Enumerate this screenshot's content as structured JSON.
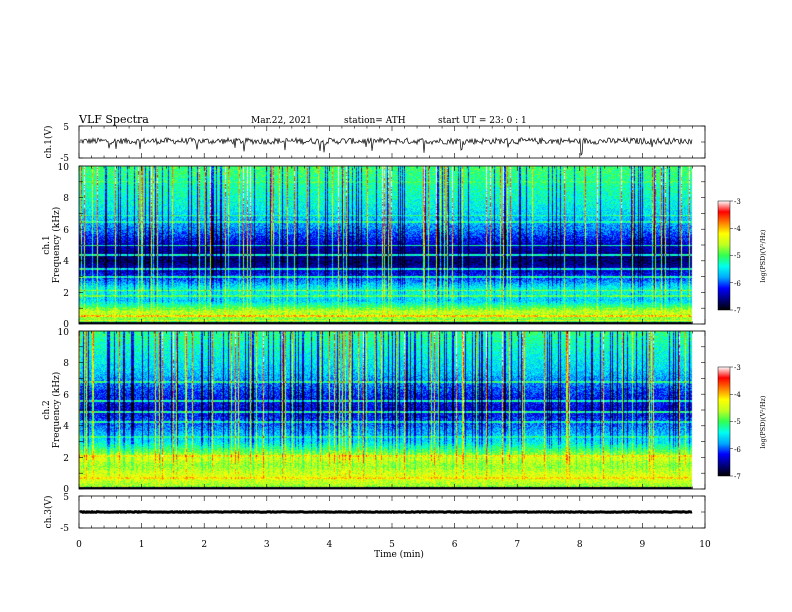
{
  "header": {
    "title": "VLF  Spectra",
    "date": "Mar.22, 2021",
    "station": "station= ATH",
    "start_ut": "start  UT  =    23: 0   : 1"
  },
  "chart_data": {
    "type": "heatmap",
    "time_axis": {
      "label": "Time  (min)",
      "ticks": [
        "0",
        "1",
        "2",
        "3",
        "4",
        "5",
        "6",
        "7",
        "8",
        "9",
        "10"
      ],
      "range": [
        0,
        10
      ],
      "data_end_min": 9.8
    },
    "colorscale": [
      "#000000",
      "#000080",
      "#0000ff",
      "#00aaff",
      "#00ffee",
      "#30ff50",
      "#c0ff20",
      "#ffff00",
      "#ff7f00",
      "#ff0000",
      "#ffffff"
    ],
    "panels": [
      {
        "id": "ch1-waveform",
        "type": "line",
        "ylabel": "ch.1(V)",
        "ylim": [
          -5,
          5
        ],
        "yticks": [
          "5",
          "-5"
        ],
        "baseline_v": 0.3,
        "noise_v": 1.0,
        "color": "#000000"
      },
      {
        "id": "ch1-spectrogram",
        "type": "heatmap",
        "ylabel": "ch.1\nFrequency  (kHz)",
        "ylim": [
          0,
          10
        ],
        "yticks": [
          "0",
          "2",
          "4",
          "6",
          "8",
          "10"
        ],
        "colorbar": {
          "label": "log(PSD)(V²/Hz)",
          "range": [
            -7,
            -3
          ],
          "ticks": [
            "-3",
            "-4",
            "-5",
            "-6",
            "-7"
          ]
        },
        "level_profile": [
          {
            "f": 0.0,
            "v": 0.45
          },
          {
            "f": 0.3,
            "v": 0.55
          },
          {
            "f": 0.8,
            "v": 0.62
          },
          {
            "f": 1.5,
            "v": 0.35
          },
          {
            "f": 2.2,
            "v": 0.42
          },
          {
            "f": 3.0,
            "v": 0.22
          },
          {
            "f": 4.0,
            "v": 0.08
          },
          {
            "f": 5.0,
            "v": 0.15
          },
          {
            "f": 6.0,
            "v": 0.28
          },
          {
            "f": 7.5,
            "v": 0.4
          },
          {
            "f": 10.0,
            "v": 0.5
          }
        ],
        "lines_khz": [
          {
            "f": 0.25,
            "v": 0.68
          },
          {
            "f": 0.55,
            "v": 0.74
          },
          {
            "f": 1.0,
            "v": 0.55
          },
          {
            "f": 1.8,
            "v": 0.52
          },
          {
            "f": 2.15,
            "v": 0.56
          },
          {
            "f": 3.0,
            "v": 0.44
          },
          {
            "f": 3.5,
            "v": 0.4
          },
          {
            "f": 4.4,
            "v": 0.42
          },
          {
            "f": 5.0,
            "v": 0.44
          },
          {
            "f": 6.5,
            "v": 0.46
          },
          {
            "f": 6.9,
            "v": 0.48
          },
          {
            "f": 9.0,
            "v": 0.5
          }
        ]
      },
      {
        "id": "ch2-spectrogram",
        "type": "heatmap",
        "ylabel": "ch.2\nFrequency  (kHz)",
        "ylim": [
          0,
          10
        ],
        "yticks": [
          "0",
          "2",
          "4",
          "6",
          "8",
          "10"
        ],
        "colorbar": {
          "label": "log(PSD)(V²/Hz)",
          "range": [
            -7,
            -3
          ],
          "ticks": [
            "-3",
            "-4",
            "-5",
            "-6",
            "-7"
          ]
        },
        "level_profile": [
          {
            "f": 0.0,
            "v": 0.55
          },
          {
            "f": 0.8,
            "v": 0.66
          },
          {
            "f": 1.5,
            "v": 0.58
          },
          {
            "f": 2.0,
            "v": 0.64
          },
          {
            "f": 3.0,
            "v": 0.38
          },
          {
            "f": 4.0,
            "v": 0.28
          },
          {
            "f": 5.0,
            "v": 0.18
          },
          {
            "f": 6.0,
            "v": 0.22
          },
          {
            "f": 7.5,
            "v": 0.35
          },
          {
            "f": 10.0,
            "v": 0.48
          }
        ],
        "lines_khz": [
          {
            "f": 0.7,
            "v": 0.72
          },
          {
            "f": 1.9,
            "v": 0.66
          },
          {
            "f": 2.1,
            "v": 0.7
          },
          {
            "f": 3.3,
            "v": 0.46
          },
          {
            "f": 4.3,
            "v": 0.44
          },
          {
            "f": 4.9,
            "v": 0.46
          },
          {
            "f": 5.6,
            "v": 0.44
          },
          {
            "f": 6.8,
            "v": 0.48
          }
        ]
      },
      {
        "id": "ch3-waveform",
        "type": "line",
        "ylabel": "ch.3(V)",
        "ylim": [
          -5,
          5
        ],
        "yticks": [
          "5",
          "-5"
        ],
        "baseline_v": 0.0,
        "noise_v": 0.1,
        "color": "#000000"
      }
    ]
  }
}
